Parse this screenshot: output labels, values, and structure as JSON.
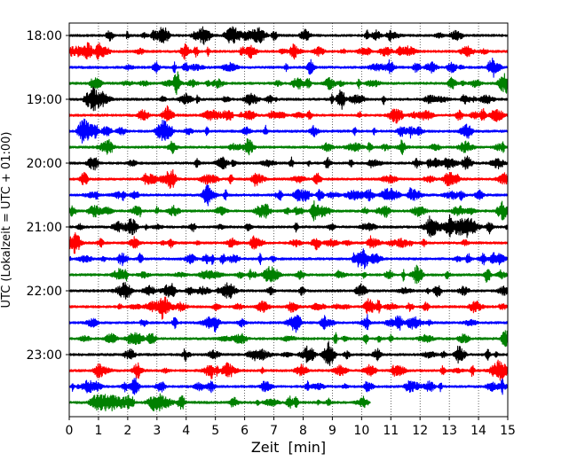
{
  "chart_data": {
    "type": "line",
    "subtype": "helicorder",
    "title": "",
    "xlabel": "Zeit  [min]",
    "ylabel": "UTC (Lokalzeit = UTC + 01:00)",
    "xlim": [
      0,
      15
    ],
    "x_ticks": [
      "0",
      "1",
      "2",
      "3",
      "4",
      "5",
      "6",
      "7",
      "8",
      "9",
      "10",
      "11",
      "12",
      "13",
      "14",
      "15"
    ],
    "grid": "vertical dotted lines at each minute",
    "line_colors": [
      "#000000",
      "#ff0000",
      "#0000ff",
      "#008000"
    ],
    "rows": [
      {
        "label": "18:00",
        "color": "#000000",
        "end": 15
      },
      {
        "label": "",
        "color": "#ff0000",
        "end": 15
      },
      {
        "label": "",
        "color": "#0000ff",
        "end": 15
      },
      {
        "label": "",
        "color": "#008000",
        "end": 15
      },
      {
        "label": "19:00",
        "color": "#000000",
        "end": 15
      },
      {
        "label": "",
        "color": "#ff0000",
        "end": 15
      },
      {
        "label": "",
        "color": "#0000ff",
        "end": 15
      },
      {
        "label": "",
        "color": "#008000",
        "end": 15
      },
      {
        "label": "20:00",
        "color": "#000000",
        "end": 15
      },
      {
        "label": "",
        "color": "#ff0000",
        "end": 15
      },
      {
        "label": "",
        "color": "#0000ff",
        "end": 15
      },
      {
        "label": "",
        "color": "#008000",
        "end": 15
      },
      {
        "label": "21:00",
        "color": "#000000",
        "end": 15
      },
      {
        "label": "",
        "color": "#ff0000",
        "end": 15
      },
      {
        "label": "",
        "color": "#0000ff",
        "end": 15
      },
      {
        "label": "",
        "color": "#008000",
        "end": 15
      },
      {
        "label": "22:00",
        "color": "#000000",
        "end": 15
      },
      {
        "label": "",
        "color": "#ff0000",
        "end": 15
      },
      {
        "label": "",
        "color": "#0000ff",
        "end": 15
      },
      {
        "label": "",
        "color": "#008000",
        "end": 15
      },
      {
        "label": "23:00",
        "color": "#000000",
        "end": 15
      },
      {
        "label": "",
        "color": "#ff0000",
        "end": 15
      },
      {
        "label": "",
        "color": "#0000ff",
        "end": 15
      },
      {
        "label": "",
        "color": "#008000",
        "end": 10.3
      }
    ]
  }
}
